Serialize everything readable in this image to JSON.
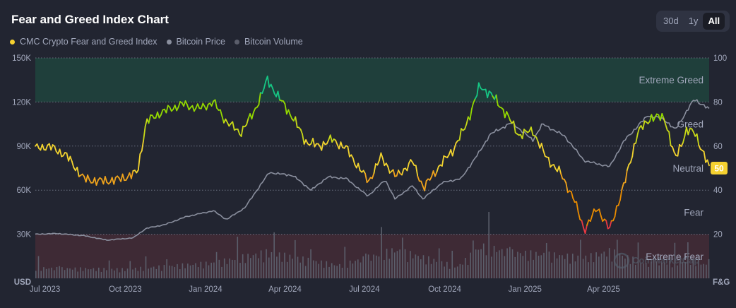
{
  "title": "Fear and Greed Index Chart",
  "tabs": [
    {
      "label": "30d",
      "active": false
    },
    {
      "label": "1y",
      "active": false
    },
    {
      "label": "All",
      "active": true
    }
  ],
  "colors": {
    "background": "#222531",
    "fg_index": "#f5d130",
    "bitcoin_price": "#8a8f9e",
    "bitcoin_volume": "#5b5e6b",
    "extreme_greed_band": "#1f3f3b",
    "extreme_fear_band": "#3e2a35",
    "extreme_fear_color": "#ea3943",
    "fear_color": "#ea8c00",
    "neutral_color": "#f3d42f",
    "greed_color": "#93d900",
    "extreme_greed_color": "#16c784"
  },
  "chart_data": {
    "type": "line",
    "title": "Fear and Greed Index Chart",
    "legend_placement": "top-left",
    "grid": true,
    "x_axis": {
      "ticks": [
        "Jul 2023",
        "Oct 2023",
        "Jan 2024",
        "Apr 2024",
        "Jul 2024",
        "Oct 2024",
        "Jan 2025",
        "Apr 2025"
      ],
      "range": [
        "2023-06-20",
        "2025-07-31"
      ]
    },
    "y_axis_left": {
      "label": "USD",
      "ticks": [
        "30K",
        "60K",
        "90K",
        "120K",
        "150K"
      ],
      "range": [
        0,
        150000
      ]
    },
    "y_axis_right": {
      "label": "F&G",
      "ticks": [
        "20",
        "40",
        "60",
        "80",
        "100"
      ],
      "range": [
        0,
        100
      ]
    },
    "zones": [
      {
        "label": "Extreme Greed",
        "from": 80,
        "to": 100
      },
      {
        "label": "Greed",
        "from": 60,
        "to": 80
      },
      {
        "label": "Neutral",
        "from": 40,
        "to": 60
      },
      {
        "label": "Fear",
        "from": 20,
        "to": 40
      },
      {
        "label": "Extreme Fear",
        "from": 0,
        "to": 20
      }
    ],
    "current_value": "50",
    "watermark": "CoinMarketCap",
    "series": [
      {
        "name": "CMC Crypto Fear and Greed Index",
        "axis": "right",
        "x": [
          "2023-06-20",
          "2023-07-05",
          "2023-07-25",
          "2023-08-15",
          "2023-09-05",
          "2023-09-25",
          "2023-10-15",
          "2023-10-25",
          "2023-11-10",
          "2023-12-05",
          "2023-12-25",
          "2024-01-10",
          "2024-01-25",
          "2024-02-10",
          "2024-02-25",
          "2024-03-12",
          "2024-03-25",
          "2024-04-10",
          "2024-04-25",
          "2024-05-10",
          "2024-05-25",
          "2024-06-10",
          "2024-06-25",
          "2024-07-06",
          "2024-07-20",
          "2024-08-06",
          "2024-08-25",
          "2024-09-07",
          "2024-09-25",
          "2024-10-10",
          "2024-10-25",
          "2024-11-10",
          "2024-11-22",
          "2024-12-10",
          "2024-12-25",
          "2025-01-10",
          "2025-01-25",
          "2025-02-10",
          "2025-02-25",
          "2025-03-10",
          "2025-03-25",
          "2025-04-08",
          "2025-04-25",
          "2025-05-10",
          "2025-05-25",
          "2025-06-10",
          "2025-06-22",
          "2025-07-05",
          "2025-07-15",
          "2025-07-31"
        ],
        "values": [
          59,
          60,
          56,
          45,
          44,
          45,
          48,
          71,
          75,
          79,
          77,
          80,
          71,
          66,
          75,
          90,
          82,
          73,
          62,
          60,
          63,
          59,
          50,
          44,
          55,
          46,
          53,
          41,
          51,
          58,
          69,
          87,
          84,
          75,
          65,
          67,
          55,
          48,
          37,
          22,
          32,
          22,
          43,
          66,
          73,
          73,
          54,
          67,
          66,
          50
        ]
      },
      {
        "name": "Bitcoin Price",
        "axis": "left",
        "x": [
          "2023-06-20",
          "2023-07-15",
          "2023-08-15",
          "2023-09-10",
          "2023-10-10",
          "2023-10-25",
          "2023-11-15",
          "2023-12-10",
          "2024-01-10",
          "2024-01-25",
          "2024-02-15",
          "2024-03-01",
          "2024-03-14",
          "2024-04-10",
          "2024-05-01",
          "2024-05-20",
          "2024-06-10",
          "2024-07-05",
          "2024-07-25",
          "2024-08-05",
          "2024-08-25",
          "2024-09-06",
          "2024-09-28",
          "2024-10-20",
          "2024-11-12",
          "2024-11-22",
          "2024-12-17",
          "2025-01-10",
          "2025-01-21",
          "2025-02-15",
          "2025-03-10",
          "2025-04-08",
          "2025-04-25",
          "2025-05-22",
          "2025-06-10",
          "2025-06-22",
          "2025-07-14",
          "2025-07-31"
        ],
        "values": [
          30000,
          30500,
          29000,
          26000,
          27500,
          34000,
          36500,
          42000,
          46000,
          40000,
          48000,
          61000,
          72000,
          70000,
          60000,
          69000,
          68000,
          56000,
          67000,
          54000,
          63000,
          54000,
          65000,
          68000,
          88000,
          98000,
          106000,
          94000,
          105000,
          97000,
          80000,
          76000,
          94000,
          111000,
          108000,
          101000,
          122000,
          115000
        ]
      },
      {
        "name": "Bitcoin Volume",
        "axis": "left",
        "x": [
          "2023-06-20",
          "2023-10-01",
          "2024-01-10",
          "2024-03-10",
          "2024-06-01",
          "2024-08-05",
          "2024-10-15",
          "2024-11-12",
          "2024-12-15",
          "2025-02-03",
          "2025-03-10",
          "2025-04-08",
          "2025-05-20",
          "2025-07-14",
          "2025-07-31"
        ],
        "values": [
          8000,
          7000,
          12000,
          20000,
          10000,
          22000,
          9000,
          25000,
          20000,
          18000,
          16000,
          21000,
          11000,
          14000,
          9000
        ]
      }
    ]
  }
}
